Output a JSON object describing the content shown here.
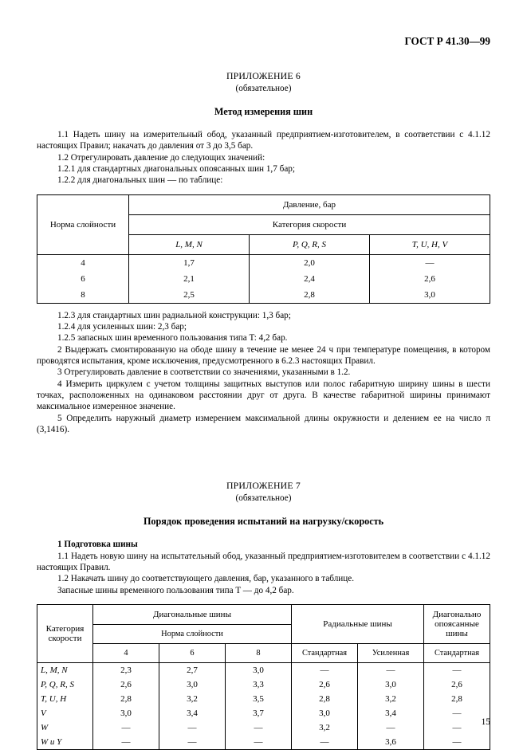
{
  "doc_id": "ГОСТ Р 41.30—99",
  "page_number": "15",
  "annex6": {
    "title": "ПРИЛОЖЕНИЕ 6",
    "subtitle": "(обязательное)",
    "heading": "Метод измерения шин",
    "para_1_1": "1.1 Надеть шину на измерительный обод, указанный предприятием-изготовителем, в соответствии с 4.1.12 настоящих Правил; накачать до давления от 3 до 3,5 бар.",
    "para_1_2": "1.2 Отрегулировать давление до следующих значений:",
    "para_1_2_1": "1.2.1 для стандартных диагональных опоясанных шин 1,7 бар;",
    "para_1_2_2": "1.2.2 для диагональных шин — по таблице:",
    "table": {
      "stub_label": "Норма слойности",
      "col_top": "Давление, бар",
      "col_mid": "Категория скорости",
      "columns": [
        "L, M, N",
        "P, Q, R, S",
        "T, U, H, V"
      ],
      "rows": [
        {
          "ply": "4",
          "v": [
            "1,7",
            "2,0",
            "—"
          ]
        },
        {
          "ply": "6",
          "v": [
            "2,1",
            "2,4",
            "2,6"
          ]
        },
        {
          "ply": "8",
          "v": [
            "2,5",
            "2,8",
            "3,0"
          ]
        }
      ]
    },
    "para_1_2_3": "1.2.3 для стандартных шин радиальной конструкции: 1,3 бар;",
    "para_1_2_4": "1.2.4 для усиленных шин: 2,3 бар;",
    "para_1_2_5": "1.2.5 запасных шин временного пользования типа T: 4,2 бар.",
    "para_2": "2 Выдержать смонтированную на ободе шину в течение не менее 24 ч при температуре помещения, в котором проводятся испытания, кроме исключения, предусмотренного в 6.2.3 настоящих Правил.",
    "para_3": "3 Отрегулировать давление в соответствии со значениями, указанными в 1.2.",
    "para_4": "4 Измерить циркулем с учетом толщины защитных выступов или полос габаритную ширину шины в шести точках, расположенных на одинаковом расстоянии друг от друга. В качестве габаритной ширины принимают максимальное измеренное значение.",
    "para_5": "5 Определить наружный диаметр измерением максимальной длины окружности и делением ее на число π (3,1416)."
  },
  "annex7": {
    "title": "ПРИЛОЖЕНИЕ 7",
    "subtitle": "(обязательное)",
    "heading": "Порядок проведения испытаний на нагрузку/скорость",
    "sec1_head": "1 Подготовка шины",
    "para_1_1": "1.1 Надеть новую шину на испытательный обод, указанный предприятием-изготовителем в соответствии с 4.1.12 настоящих Правил.",
    "para_1_2": "1.2 Накачать шину до соответствующего давления, бар, указанного в таблице.",
    "para_sub": "Запасные шины временного пользования типа T — до 4,2 бар.",
    "table": {
      "stub_label": "Категория скорости",
      "group_diag": "Диагональные шины",
      "group_rad": "Радиальные шины",
      "group_diagbelt": "Диагонально опоясанные шины",
      "sub_ply": "Норма слойности",
      "ply_cols": [
        "4",
        "6",
        "8"
      ],
      "rad_cols": [
        "Стандартная",
        "Усиленная"
      ],
      "belt_col": "Стандартная",
      "rows": [
        {
          "cat": "L, M, N",
          "d": [
            "2,3",
            "2,7",
            "3,0"
          ],
          "r": [
            "—",
            "—"
          ],
          "b": "—"
        },
        {
          "cat": "P, Q, R, S",
          "d": [
            "2,6",
            "3,0",
            "3,3"
          ],
          "r": [
            "2,6",
            "3,0"
          ],
          "b": "2,6"
        },
        {
          "cat": "T, U, H",
          "d": [
            "2,8",
            "3,2",
            "3,5"
          ],
          "r": [
            "2,8",
            "3,2"
          ],
          "b": "2,8"
        },
        {
          "cat": "V",
          "d": [
            "3,0",
            "3,4",
            "3,7"
          ],
          "r": [
            "3,0",
            "3,4"
          ],
          "b": "—"
        },
        {
          "cat": "W",
          "d": [
            "—",
            "—",
            "—"
          ],
          "r": [
            "3,2",
            "—"
          ],
          "b": "—"
        },
        {
          "cat": "W и Y",
          "d": [
            "—",
            "—",
            "—"
          ],
          "r": [
            "—",
            "3,6"
          ],
          "b": "—"
        }
      ]
    }
  }
}
